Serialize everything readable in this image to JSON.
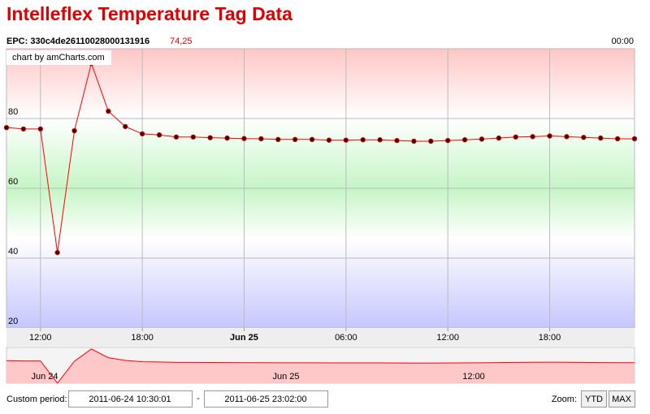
{
  "header": {
    "title": "Intelleflex Temperature Tag Data",
    "epc": "EPC: 330c4de26110028000131916",
    "cursor_value": "74,25",
    "cursor_time": "00:00",
    "credit": "chart by amCharts.com"
  },
  "chart_data": {
    "type": "line",
    "color": "#ff0000",
    "marker_color": "#3a0000",
    "categories": [
      null,
      null,
      "12:00",
      null,
      null,
      null,
      null,
      null,
      "18:00",
      null,
      null,
      null,
      null,
      null,
      "Jun 25",
      null,
      null,
      null,
      null,
      null,
      "06:00",
      null,
      null,
      null,
      null,
      null,
      "12:00",
      null,
      null,
      null,
      null,
      null,
      "18:00",
      null,
      null,
      null,
      null,
      null
    ],
    "values": [
      77.4,
      77.0,
      77.0,
      41.6,
      76.5,
      95.8,
      82.1,
      77.7,
      75.6,
      75.3,
      74.7,
      74.7,
      74.5,
      74.4,
      74.25,
      74.2,
      74.0,
      74.0,
      74.0,
      73.8,
      73.8,
      73.9,
      73.9,
      73.7,
      73.5,
      73.5,
      73.7,
      73.9,
      74.1,
      74.4,
      74.7,
      74.8,
      75.0,
      74.8,
      74.6,
      74.4,
      74.2,
      74.2
    ],
    "ylim": [
      20,
      100
    ],
    "yticks": [
      20,
      40,
      60,
      80
    ],
    "grid": true,
    "scrollbar_labels": [
      "Jun 24",
      "Jun 25",
      "12:00"
    ]
  },
  "controls": {
    "period_label": "Custom period:",
    "from": "2011-06-24 10:30:01",
    "separator": "-",
    "to": "2011-06-25 23:02:00",
    "zoom_label": "Zoom:",
    "buttons": [
      "YTD",
      "MAX"
    ]
  }
}
